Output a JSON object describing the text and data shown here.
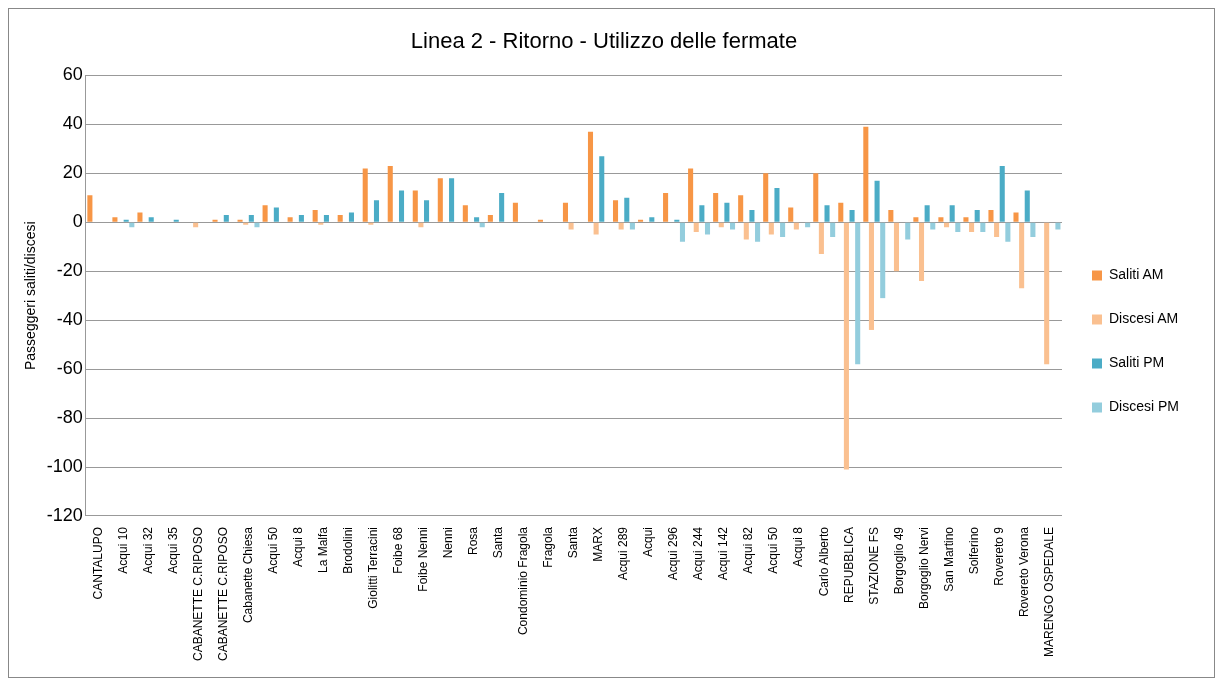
{
  "chart_data": {
    "type": "bar",
    "title": "Linea 2 - Ritorno - Utilizzo delle fermate",
    "ylabel": "Passeggeri saliti/discesi",
    "categories": [
      "CANTALUPO",
      "Acqui 10",
      "Acqui 32",
      "Acqui 35",
      "CABANETTE C.RIPOSO",
      "CABANETTE C.RIPOSO",
      "Cabanette Chiesa",
      "Acqui 50",
      "Acqui 8",
      "La Malfa",
      "Brodolini",
      "Giolitti Terracini",
      "Foibe 68",
      "Foibe Nenni",
      "Nenni",
      "Rosa",
      "Santa",
      "Condominio Fragola",
      "Fragola",
      "Santa",
      "MARX",
      "Acqui 289",
      "Acqui",
      "Acqui 296",
      "Acqui 244",
      "Acqui 142",
      "Acqui 82",
      "Acqui 50",
      "Acqui 8",
      "Carlo Alberto",
      "REPUBBLICA",
      "STAZIONE FS",
      "Borgoglio 49",
      "Borgoglio Nervi",
      "San Martino",
      "Solferino",
      "Rovereto 9",
      "Rovereto Verona",
      "MARENGO OSPEDALE"
    ],
    "series": [
      {
        "name": "Saliti AM",
        "color": "#f79646",
        "values": [
          11,
          2,
          4,
          0,
          0,
          1,
          1,
          7,
          2,
          5,
          3,
          22,
          23,
          13,
          18,
          7,
          3,
          8,
          1,
          8,
          37,
          9,
          1,
          12,
          22,
          12,
          11,
          20,
          6,
          20,
          8,
          39,
          5,
          2,
          2,
          2,
          5,
          4,
          0
        ]
      },
      {
        "name": "Discesi AM",
        "color": "#fac090",
        "values": [
          0,
          0,
          0,
          0,
          -2,
          0,
          -1,
          0,
          0,
          -1,
          0,
          -1,
          0,
          -2,
          0,
          0,
          0,
          0,
          0,
          -3,
          -5,
          -3,
          0,
          0,
          -4,
          -2,
          -7,
          -5,
          -3,
          -13,
          -101,
          -44,
          -20,
          -24,
          -2,
          -4,
          -6,
          -27,
          -58
        ]
      },
      {
        "name": "Saliti PM",
        "color": "#4bacc6",
        "values": [
          0,
          1,
          2,
          1,
          0,
          3,
          3,
          6,
          3,
          3,
          4,
          9,
          13,
          9,
          18,
          2,
          12,
          0,
          0,
          0,
          27,
          10,
          2,
          1,
          7,
          8,
          5,
          14,
          0,
          7,
          5,
          17,
          0,
          7,
          7,
          5,
          23,
          13,
          0
        ]
      },
      {
        "name": "Discesi PM",
        "color": "#93cddd",
        "values": [
          0,
          -2,
          0,
          0,
          0,
          0,
          -2,
          0,
          0,
          0,
          0,
          0,
          0,
          0,
          0,
          -2,
          0,
          0,
          0,
          0,
          0,
          -3,
          0,
          -8,
          -5,
          -3,
          -8,
          -6,
          -2,
          -6,
          -58,
          -31,
          -7,
          -3,
          -4,
          -4,
          -8,
          -6,
          -3
        ]
      }
    ],
    "ylim": [
      -120,
      60
    ],
    "yticks": [
      -120,
      -100,
      -80,
      -60,
      -40,
      -20,
      0,
      20,
      40,
      60
    ],
    "grid": "y",
    "legend": "right"
  }
}
